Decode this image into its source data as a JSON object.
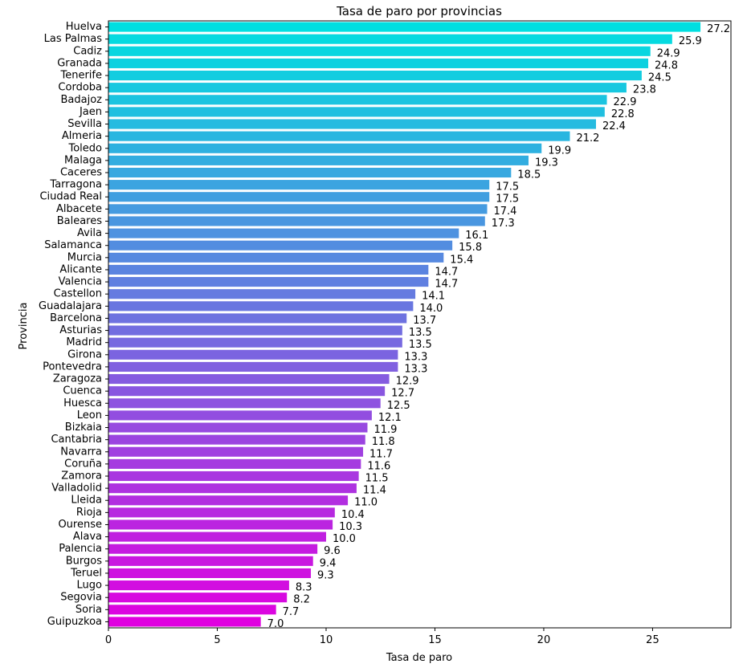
{
  "chart_data": {
    "type": "bar",
    "orientation": "horizontal",
    "title": "Tasa de paro por provincias",
    "xlabel": "Tasa de paro",
    "ylabel": "Provincia",
    "xlim": [
      0,
      28.6
    ],
    "xticks": [
      0,
      5,
      10,
      15,
      20,
      25
    ],
    "grid": false,
    "color_start": "#00dfe0",
    "color_end": "#e000e0",
    "categories": [
      "Huelva",
      "Las Palmas",
      "Cadiz",
      "Granada",
      "Tenerife",
      "Cordoba",
      "Badajoz",
      "Jaen",
      "Sevilla",
      "Almeria",
      "Toledo",
      "Malaga",
      "Caceres",
      "Tarragona",
      "Ciudad Real",
      "Albacete",
      "Baleares",
      "Avila",
      "Salamanca",
      "Murcia",
      "Alicante",
      "Valencia",
      "Castellon",
      "Guadalajara",
      "Barcelona",
      "Asturias",
      "Madrid",
      "Girona",
      "Pontevedra",
      "Zaragoza",
      "Cuenca",
      "Huesca",
      "Leon",
      "Bizkaia",
      "Cantabria",
      "Navarra",
      "Coruña",
      "Zamora",
      "Valladolid",
      "Lleida",
      "Rioja",
      "Ourense",
      "Alava",
      "Palencia",
      "Burgos",
      "Teruel",
      "Lugo",
      "Segovia",
      "Soria",
      "Guipuzkoa"
    ],
    "values": [
      27.2,
      25.9,
      24.9,
      24.8,
      24.5,
      23.8,
      22.9,
      22.8,
      22.4,
      21.2,
      19.9,
      19.3,
      18.5,
      17.5,
      17.5,
      17.4,
      17.3,
      16.1,
      15.8,
      15.4,
      14.7,
      14.7,
      14.1,
      14.0,
      13.7,
      13.5,
      13.5,
      13.3,
      13.3,
      12.9,
      12.7,
      12.5,
      12.1,
      11.9,
      11.8,
      11.7,
      11.6,
      11.5,
      11.4,
      11.0,
      10.4,
      10.3,
      10.0,
      9.6,
      9.4,
      9.3,
      8.3,
      8.2,
      7.7,
      7.0
    ]
  }
}
